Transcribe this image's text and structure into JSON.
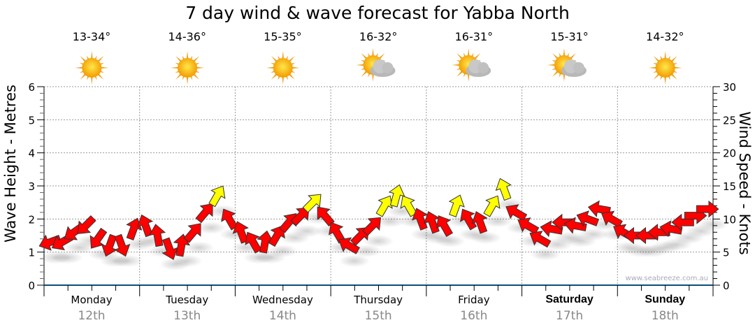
{
  "chart_data": {
    "type": "scatter",
    "title": "7 day wind & wave forecast for Yabba North",
    "ylabel": "Wave Height - Metres",
    "y2label": "Wind Speed - Knots",
    "ylim": [
      0,
      6
    ],
    "y2lim": [
      0,
      30
    ],
    "yticks": [
      "0",
      "1",
      "2",
      "3",
      "4",
      "5",
      "6"
    ],
    "y2ticks": [
      "0",
      "5",
      "10",
      "15",
      "20",
      "25",
      "30"
    ],
    "watermark": "www.seabreeze.com.au",
    "days": [
      {
        "name": "Monday",
        "date": "12th",
        "temp": "13-34°",
        "weather": "sunny",
        "bold": false
      },
      {
        "name": "Tuesday",
        "date": "13th",
        "temp": "14-36°",
        "weather": "sunny",
        "bold": false
      },
      {
        "name": "Wednesday",
        "date": "14th",
        "temp": "15-35°",
        "weather": "sunny",
        "bold": false
      },
      {
        "name": "Thursday",
        "date": "15th",
        "temp": "16-32°",
        "weather": "partly-cloudy",
        "bold": false
      },
      {
        "name": "Friday",
        "date": "16th",
        "temp": "16-31°",
        "weather": "partly-cloudy",
        "bold": false
      },
      {
        "name": "Saturday",
        "date": "17th",
        "temp": "15-31°",
        "weather": "partly-cloudy",
        "bold": true
      },
      {
        "name": "Sunday",
        "date": "18th",
        "temp": "14-32°",
        "weather": "sunny",
        "bold": true
      }
    ],
    "wind_interval_hours": 3,
    "wind_knots": [
      6.5,
      6.5,
      8,
      9,
      7,
      6,
      6,
      8.5,
      9,
      7.5,
      5.5,
      6,
      8,
      11,
      13.5,
      10,
      8,
      6.5,
      6.5,
      7.5,
      9.5,
      10.5,
      12.5,
      10.5,
      8,
      6,
      7.5,
      9,
      12,
      13.5,
      12,
      10,
      9.5,
      9,
      12,
      10,
      9.5,
      12,
      14.5,
      11,
      9,
      7,
      8.5,
      9.5,
      9,
      10,
      11.5,
      10,
      8,
      7.5,
      7.5,
      8,
      8.5,
      9.5,
      10.5,
      11.5
    ],
    "wind_arrow_direction_deg": [
      250,
      240,
      235,
      225,
      215,
      200,
      160,
      20,
      340,
      350,
      160,
      10,
      40,
      40,
      30,
      330,
      340,
      330,
      10,
      30,
      40,
      45,
      45,
      320,
      330,
      300,
      45,
      45,
      30,
      15,
      330,
      340,
      340,
      330,
      20,
      330,
      340,
      30,
      340,
      300,
      300,
      300,
      280,
      270,
      280,
      290,
      280,
      300,
      300,
      270,
      270,
      270,
      280,
      270,
      90,
      90
    ],
    "strong_wind_threshold_knots": 12,
    "colors": {
      "strong": "#ffff00",
      "normal": "#ff0000",
      "grid": "#999999",
      "axis": "#0b4f7a"
    }
  }
}
